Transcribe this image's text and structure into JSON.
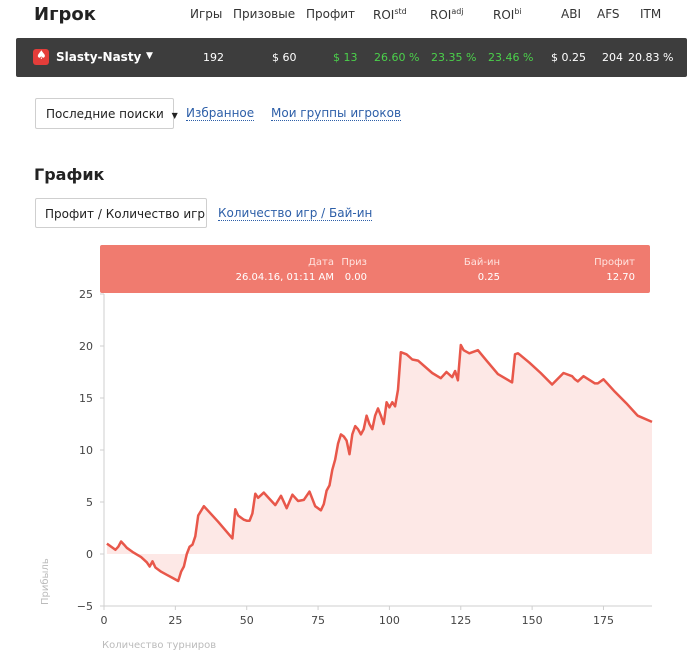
{
  "header": {
    "title": "Игрок",
    "cols": {
      "games": "Игры",
      "prizes": "Призовые",
      "profit": "Профит",
      "roi_std": "ROI",
      "roi_std_sup": "std",
      "roi_adj": "ROI",
      "roi_adj_sup": "adj",
      "roi_bi": "ROI",
      "roi_bi_sup": "bi",
      "abi": "ABI",
      "afs": "AFS",
      "itm": "ITM"
    }
  },
  "player": {
    "name": "Slasty-Nasty",
    "games": "192",
    "prizes": "$ 60",
    "profit": "$ 13",
    "roi_std": "26.60 %",
    "roi_adj": "23.35 %",
    "roi_bi": "23.46 %",
    "abi": "$ 0.25",
    "afs": "204",
    "itm": "20.83 %"
  },
  "search": {
    "recent_label": "Последние поиски",
    "favorites_label": "Избранное",
    "groups_label": "Мои группы игроков"
  },
  "chart_section": {
    "title": "График",
    "tab_active": "Профит / Количество игр",
    "tab_other": "Количество игр / Бай-ин"
  },
  "tooltip": {
    "date_label": "Дата",
    "date_value": "26.04.16, 01:11 AM",
    "prize_label": "Приз",
    "prize_value": "0.00",
    "buyin_label": "Бай-ин",
    "buyin_value": "0.25",
    "profit_label": "Профит",
    "profit_value": "12.70"
  },
  "colors": {
    "line": "#e8574a",
    "fill": "#fde8e6",
    "tooltip_bg": "#f07b6f",
    "bar_bg": "#3d3d3d",
    "positive": "#4bd14b"
  },
  "chart_data": {
    "type": "area",
    "xlabel": "Количество турниров",
    "ylabel": "Прибыль",
    "xlim": [
      0,
      192
    ],
    "ylim": [
      -5,
      25
    ],
    "x_ticks": [
      "0",
      "25",
      "50",
      "75",
      "100",
      "125",
      "150",
      "175"
    ],
    "y_ticks": [
      "25",
      "20",
      "15",
      "10",
      "5",
      "0",
      "−5"
    ],
    "x": [
      1,
      4,
      5,
      6,
      7,
      8,
      10,
      13,
      15,
      16,
      17,
      18,
      20,
      22,
      24,
      26,
      27,
      28,
      29,
      30,
      31,
      32,
      33,
      35,
      40,
      45,
      46,
      47,
      49,
      50,
      51,
      52,
      53,
      54,
      56,
      58,
      60,
      62,
      64,
      66,
      68,
      70,
      72,
      74,
      76,
      77,
      78,
      79,
      80,
      81,
      82,
      83,
      84,
      85,
      86,
      87,
      88,
      89,
      90,
      91,
      92,
      93,
      94,
      95,
      96,
      97,
      98,
      99,
      100,
      101,
      102,
      103,
      104,
      106,
      108,
      110,
      115,
      118,
      120,
      122,
      123,
      124,
      125,
      126,
      128,
      131,
      134,
      138,
      143,
      144,
      145,
      146,
      149,
      153,
      157,
      161,
      164,
      165,
      166,
      168,
      172,
      173,
      175,
      179,
      183,
      187,
      192
    ],
    "y": [
      1.0,
      0.4,
      0.7,
      1.2,
      0.9,
      0.6,
      0.2,
      -0.3,
      -0.8,
      -1.2,
      -0.7,
      -1.3,
      -1.7,
      -2.0,
      -2.3,
      -2.6,
      -1.7,
      -1.2,
      0.0,
      0.7,
      0.9,
      1.7,
      3.7,
      4.6,
      3.1,
      1.5,
      4.3,
      3.7,
      3.3,
      3.2,
      3.2,
      3.9,
      5.8,
      5.4,
      5.9,
      5.3,
      4.7,
      5.6,
      4.4,
      5.7,
      5.1,
      5.2,
      6.0,
      4.6,
      4.2,
      4.8,
      6.1,
      6.6,
      8.1,
      9.1,
      10.6,
      11.5,
      11.3,
      10.9,
      9.6,
      11.5,
      12.3,
      12.0,
      11.5,
      12.0,
      13.3,
      12.5,
      12.0,
      13.3,
      14.0,
      13.3,
      12.5,
      14.6,
      14.1,
      14.6,
      14.2,
      15.8,
      19.4,
      19.2,
      18.7,
      18.6,
      17.4,
      16.9,
      17.5,
      17.0,
      17.6,
      16.7,
      20.1,
      19.6,
      19.3,
      19.6,
      18.6,
      17.3,
      16.5,
      19.2,
      19.3,
      19.1,
      18.4,
      17.4,
      16.3,
      17.4,
      17.1,
      16.8,
      16.6,
      17.1,
      16.4,
      16.4,
      16.8,
      15.6,
      14.5,
      13.3,
      12.7
    ]
  }
}
